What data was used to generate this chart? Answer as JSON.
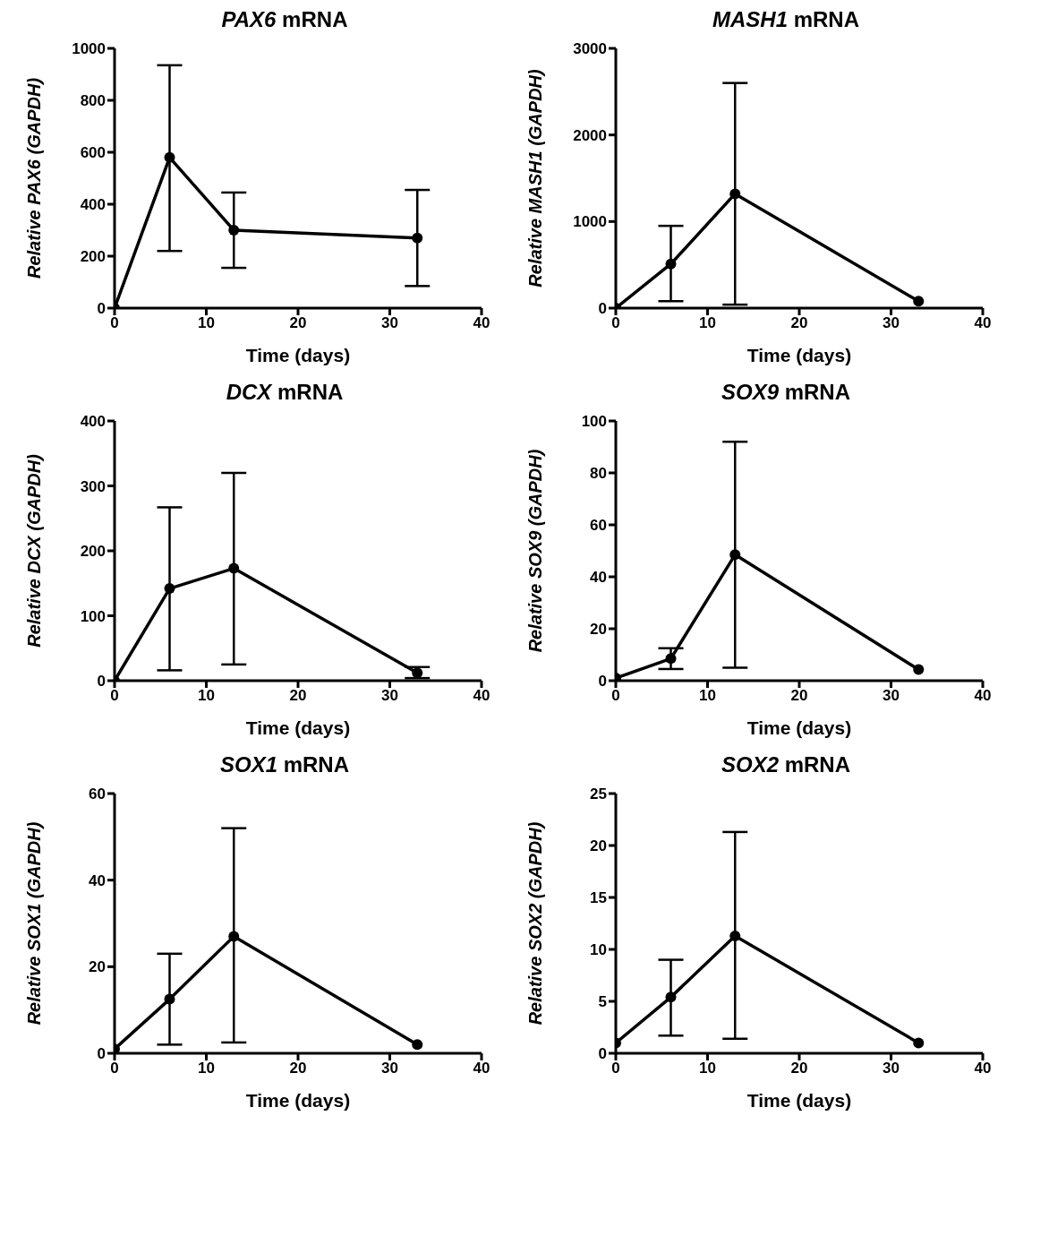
{
  "chart_data": [
    {
      "type": "line",
      "title": "PAX6 mRNA",
      "xlabel": "Time (days)",
      "ylabel": "Relative PAX6 (GAPDH)",
      "x": [
        0,
        6,
        13,
        33
      ],
      "series": [
        {
          "color": "#000000",
          "values": [
            0,
            580,
            300,
            270
          ],
          "errors": [
            null,
            [
              220,
              935
            ],
            [
              155,
              445
            ],
            [
              85,
              455
            ]
          ]
        }
      ],
      "xlim": [
        0,
        40
      ],
      "xticks": [
        0,
        10,
        20,
        30,
        40
      ],
      "ylim": [
        0,
        1000
      ],
      "yticks": [
        0,
        200,
        400,
        600,
        800,
        1000
      ],
      "marker": "circle",
      "line_style": "solid",
      "grid": false,
      "legend": false
    },
    {
      "type": "line",
      "title": "MASH1 mRNA",
      "xlabel": "Time (days)",
      "ylabel": "Relative MASH1 (GAPDH)",
      "x": [
        0,
        6,
        13,
        33
      ],
      "series": [
        {
          "color": "#000000",
          "values": [
            0,
            510,
            1320,
            80
          ],
          "errors": [
            null,
            [
              80,
              950
            ],
            [
              40,
              2600
            ],
            null
          ]
        }
      ],
      "xlim": [
        0,
        40
      ],
      "xticks": [
        0,
        10,
        20,
        30,
        40
      ],
      "ylim": [
        0,
        3000
      ],
      "yticks": [
        0,
        1000,
        2000,
        3000
      ],
      "marker": "circle",
      "line_style": "solid",
      "grid": false,
      "legend": false
    },
    {
      "type": "line",
      "title": "DCX mRNA",
      "xlabel": "Time (days)",
      "ylabel": "Relative DCX (GAPDH)",
      "x": [
        0,
        6,
        13,
        33
      ],
      "series": [
        {
          "color": "#000000",
          "values": [
            0,
            142,
            173,
            12
          ],
          "errors": [
            null,
            [
              16,
              267
            ],
            [
              25,
              320
            ],
            [
              4,
              21
            ]
          ]
        }
      ],
      "xlim": [
        0,
        40
      ],
      "xticks": [
        0,
        10,
        20,
        30,
        40
      ],
      "ylim": [
        0,
        400
      ],
      "yticks": [
        0,
        100,
        200,
        300,
        400
      ],
      "marker": "circle",
      "line_style": "solid",
      "grid": false,
      "legend": false
    },
    {
      "type": "line",
      "title": "SOX9 mRNA",
      "xlabel": "Time (days)",
      "ylabel": "Relative SOX9 (GAPDH)",
      "x": [
        0,
        6,
        13,
        33
      ],
      "series": [
        {
          "color": "#000000",
          "values": [
            1,
            8.5,
            48.5,
            4.3
          ],
          "errors": [
            null,
            [
              4.5,
              12.5
            ],
            [
              5,
              92
            ],
            null
          ]
        }
      ],
      "xlim": [
        0,
        40
      ],
      "xticks": [
        0,
        10,
        20,
        30,
        40
      ],
      "ylim": [
        0,
        100
      ],
      "yticks": [
        0,
        20,
        40,
        60,
        80,
        100
      ],
      "marker": "circle",
      "line_style": "solid",
      "grid": false,
      "legend": false
    },
    {
      "type": "line",
      "title": "SOX1 mRNA",
      "xlabel": "Time (days)",
      "ylabel": "Relative SOX1 (GAPDH)",
      "x": [
        0,
        6,
        13,
        33
      ],
      "series": [
        {
          "color": "#000000",
          "values": [
            1,
            12.5,
            27,
            2
          ],
          "errors": [
            null,
            [
              2,
              23
            ],
            [
              2.5,
              52
            ],
            null
          ]
        }
      ],
      "xlim": [
        0,
        40
      ],
      "xticks": [
        0,
        10,
        20,
        30,
        40
      ],
      "ylim": [
        0,
        60
      ],
      "yticks": [
        0,
        20,
        40,
        60
      ],
      "marker": "circle",
      "line_style": "solid",
      "grid": false,
      "legend": false
    },
    {
      "type": "line",
      "title": "SOX2 mRNA",
      "xlabel": "Time (days)",
      "ylabel": "Relative SOX2 (GAPDH)",
      "x": [
        0,
        6,
        13,
        33
      ],
      "series": [
        {
          "color": "#000000",
          "values": [
            1,
            5.4,
            11.3,
            1
          ],
          "errors": [
            null,
            [
              1.7,
              9
            ],
            [
              1.4,
              21.3
            ],
            null
          ]
        }
      ],
      "xlim": [
        0,
        40
      ],
      "xticks": [
        0,
        10,
        20,
        30,
        40
      ],
      "ylim": [
        0,
        25
      ],
      "yticks": [
        0,
        5,
        10,
        15,
        20,
        25
      ],
      "marker": "circle",
      "line_style": "solid",
      "grid": false,
      "legend": false
    }
  ]
}
